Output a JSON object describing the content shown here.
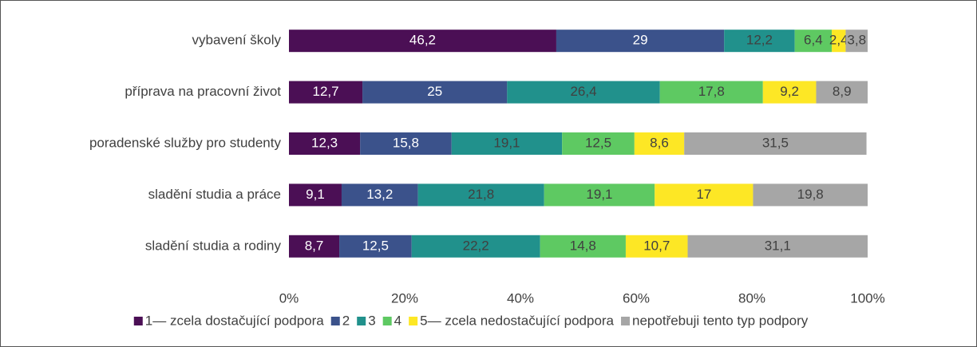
{
  "chart_data": {
    "type": "stacked-bar-horizontal",
    "categories": [
      "vybavení školy",
      "příprava na pracovní život",
      "poradenské služby pro studenty",
      "sladění studia a práce",
      "sladění studia a rodiny"
    ],
    "series": [
      {
        "name": "1— zcela dostačující podpora",
        "color": "#4b0f55",
        "values": [
          46.2,
          12.7,
          12.3,
          9.1,
          8.7
        ],
        "value_labels": [
          "46,2",
          "12,7",
          "12,3",
          "9,1",
          "8,7"
        ]
      },
      {
        "name": "2",
        "color": "#3b528b",
        "values": [
          29,
          25,
          15.8,
          13.2,
          12.5
        ],
        "value_labels": [
          "29",
          "25",
          "15,8",
          "13,2",
          "12,5"
        ]
      },
      {
        "name": "3",
        "color": "#21918c",
        "values": [
          12.2,
          26.4,
          19.1,
          21.8,
          22.2
        ],
        "value_labels": [
          "12,2",
          "26,4",
          "19,1",
          "21,8",
          "22,2"
        ]
      },
      {
        "name": "4",
        "color": "#5ec962",
        "values": [
          6.4,
          17.8,
          12.5,
          19.1,
          14.8
        ],
        "value_labels": [
          "6,4",
          "17,8",
          "12,5",
          "19,1",
          "14,8"
        ]
      },
      {
        "name": "5— zcela nedostačující podpora",
        "color": "#fde725",
        "values": [
          2.4,
          9.2,
          8.6,
          17,
          10.7
        ],
        "value_labels": [
          "2,4",
          "9,2",
          "8,6",
          "17",
          "10,7"
        ]
      },
      {
        "name": "nepotřebuji tento typ podpory",
        "color": "#a6a6a6",
        "values": [
          3.8,
          8.9,
          31.5,
          19.8,
          31.1
        ],
        "value_labels": [
          "3,8",
          "8,9",
          "31,5",
          "19,8",
          "31,1"
        ]
      }
    ],
    "xlim": [
      0,
      100
    ],
    "xticks": [
      {
        "value": 0,
        "label": "0%"
      },
      {
        "value": 20,
        "label": "20%"
      },
      {
        "value": 40,
        "label": "40%"
      },
      {
        "value": 60,
        "label": "60%"
      },
      {
        "value": 80,
        "label": "80%"
      },
      {
        "value": 100,
        "label": "100%"
      }
    ],
    "legend": "bottom"
  }
}
